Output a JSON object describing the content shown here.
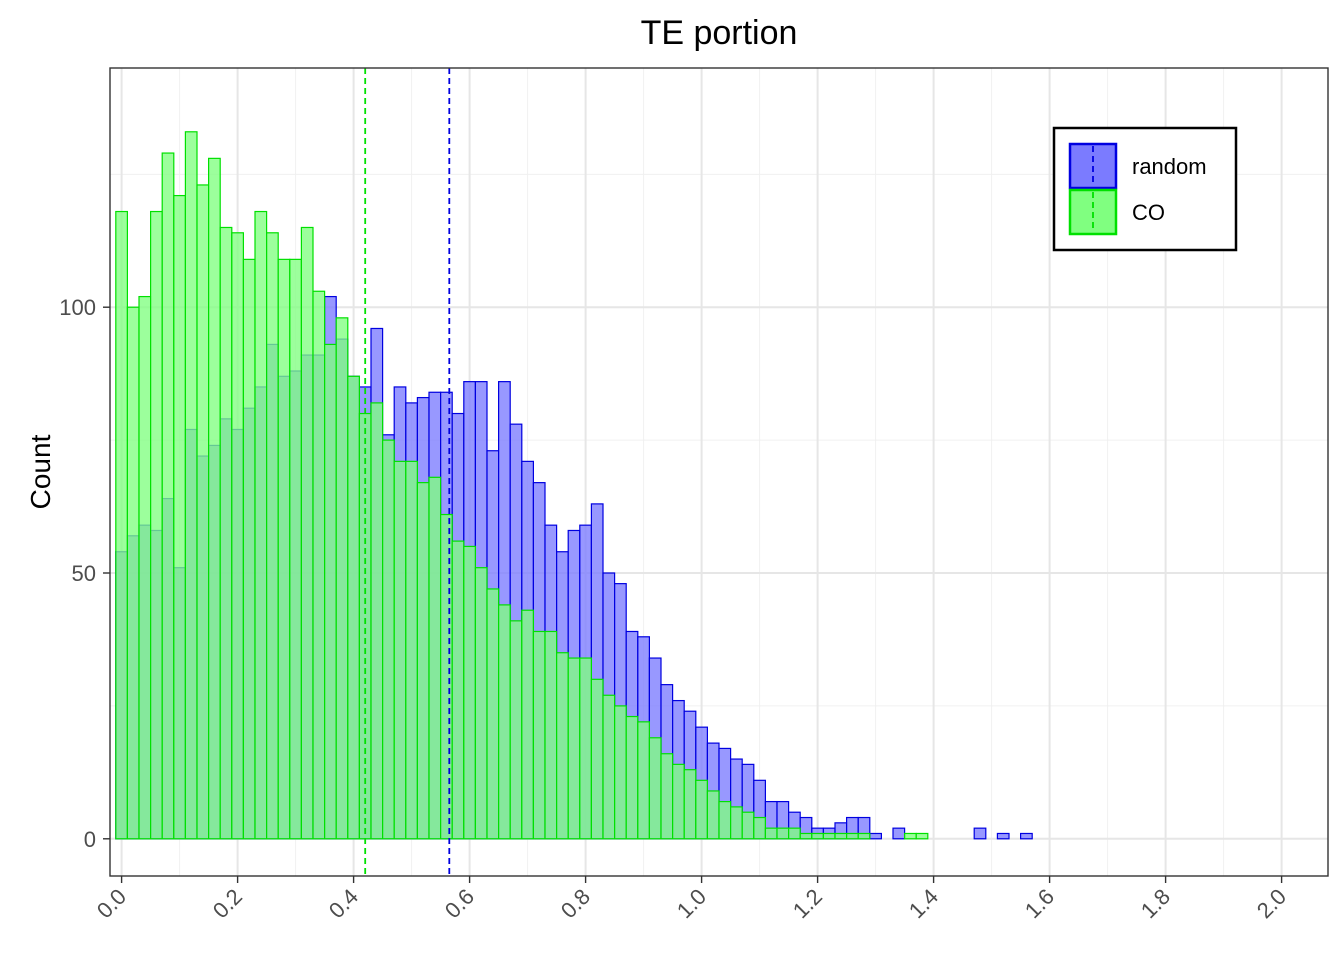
{
  "chart_data": {
    "type": "histogram",
    "title": "TE portion",
    "xlabel": "",
    "ylabel": "Count",
    "xlim": [
      -0.02,
      2.08
    ],
    "ylim": [
      -7,
      145
    ],
    "x_ticks": [
      "0.0",
      "0.2",
      "0.4",
      "0.6",
      "0.8",
      "1.0",
      "1.2",
      "1.4",
      "1.6",
      "1.8",
      "2.0"
    ],
    "y_ticks": [
      "0",
      "50",
      "100"
    ],
    "grid": true,
    "legend_position": "top-right",
    "bin_start": -0.01,
    "bin_width": 0.02,
    "series": [
      {
        "name": "random",
        "fill": "#7b7bff",
        "stroke": "#0000e0",
        "mean_line": 0.565,
        "counts": [
          54,
          57,
          59,
          58,
          64,
          51,
          77,
          72,
          74,
          79,
          77,
          81,
          85,
          93,
          87,
          88,
          91,
          91,
          102,
          94,
          87,
          85,
          96,
          76,
          85,
          82,
          83,
          84,
          84,
          80,
          86,
          86,
          73,
          86,
          78,
          71,
          67,
          59,
          54,
          58,
          59,
          63,
          50,
          48,
          39,
          38,
          34,
          29,
          26,
          24,
          21,
          18,
          17,
          15,
          14,
          11,
          7,
          7,
          5,
          4,
          2,
          2,
          3,
          4,
          4,
          1,
          0,
          2,
          0,
          0,
          0,
          0,
          0,
          0,
          2,
          0,
          1,
          0,
          1,
          0,
          0,
          0,
          0,
          0,
          0,
          0,
          0,
          0,
          0,
          0,
          0,
          0,
          0,
          0,
          0,
          0,
          0,
          0,
          0,
          0,
          0,
          0,
          0,
          0,
          0,
          0
        ]
      },
      {
        "name": "CO",
        "fill": "#80ff80",
        "stroke": "#00e000",
        "mean_line": 0.42,
        "counts": [
          118,
          100,
          102,
          118,
          129,
          121,
          133,
          123,
          128,
          115,
          114,
          109,
          118,
          114,
          109,
          109,
          115,
          103,
          93,
          98,
          87,
          80,
          82,
          75,
          71,
          71,
          67,
          68,
          61,
          56,
          55,
          51,
          47,
          44,
          41,
          43,
          39,
          39,
          35,
          34,
          34,
          30,
          27,
          25,
          23,
          22,
          19,
          16,
          14,
          13,
          11,
          9,
          7,
          6,
          5,
          4,
          2,
          2,
          2,
          1,
          1,
          1,
          1,
          1,
          1,
          0,
          0,
          0,
          1,
          1,
          0,
          0,
          0,
          0,
          0,
          0,
          0,
          0,
          0,
          0,
          0,
          0,
          0,
          0,
          0,
          0,
          0,
          0,
          0,
          0,
          0,
          0,
          0,
          0,
          0,
          0,
          0,
          0,
          0,
          0,
          0,
          0,
          0,
          0,
          0,
          0
        ]
      }
    ]
  }
}
